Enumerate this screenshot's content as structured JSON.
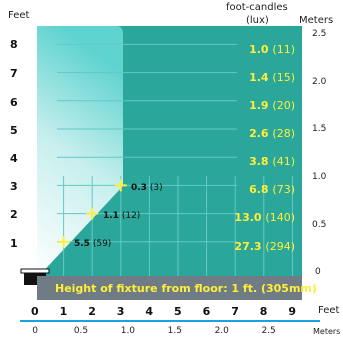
{
  "header": {
    "y_left_unit": "Feet",
    "illuminance_title": "foot-candles",
    "illuminance_sub": "(lux)",
    "y_right_unit": "Meters"
  },
  "feet_ticks": [
    "8",
    "7",
    "6",
    "5",
    "4",
    "3",
    "2",
    "1"
  ],
  "meters_ticks_right": [
    "2.5",
    "2.0",
    "1.5",
    "1.0",
    "0.5",
    "0"
  ],
  "fc_levels": [
    {
      "fc": "1.0",
      "lux": "(11)"
    },
    {
      "fc": "1.4",
      "lux": "(15)"
    },
    {
      "fc": "1.9",
      "lux": "(20)"
    },
    {
      "fc": "2.6",
      "lux": "(28)"
    },
    {
      "fc": "3.8",
      "lux": "(41)"
    },
    {
      "fc": "6.8",
      "lux": "(73)"
    },
    {
      "fc": "13.0",
      "lux": "(140)"
    },
    {
      "fc": "27.3",
      "lux": "(294)"
    }
  ],
  "edge_points": [
    {
      "fc": "0.3",
      "lux": "(3)",
      "feet_x": 3,
      "feet_y": 3
    },
    {
      "fc": "1.1",
      "lux": "(12)",
      "feet_x": 2,
      "feet_y": 2
    },
    {
      "fc": "5.5",
      "lux": "(59)",
      "feet_x": 1,
      "feet_y": 1
    }
  ],
  "title_band": "Height of fixture from floor: 1 ft. (305mm)",
  "bottom_feet": {
    "unit": "Feet",
    "ticks": [
      "0",
      "1",
      "2",
      "3",
      "4",
      "5",
      "6",
      "7",
      "8",
      "9"
    ]
  },
  "bottom_meters": {
    "unit": "Meters",
    "ticks": [
      "0",
      "0.5",
      "1.0",
      "1.5",
      "2.0",
      "2.5"
    ]
  },
  "colors": {
    "panel": "#2aa69a",
    "beam_light": "#ffffff",
    "beam_mid": "#9fe4e0",
    "grid": "#62c9c7",
    "highlight": "#ffef3a",
    "band": "#707c85",
    "axis_rule": "#1da1e0"
  }
}
